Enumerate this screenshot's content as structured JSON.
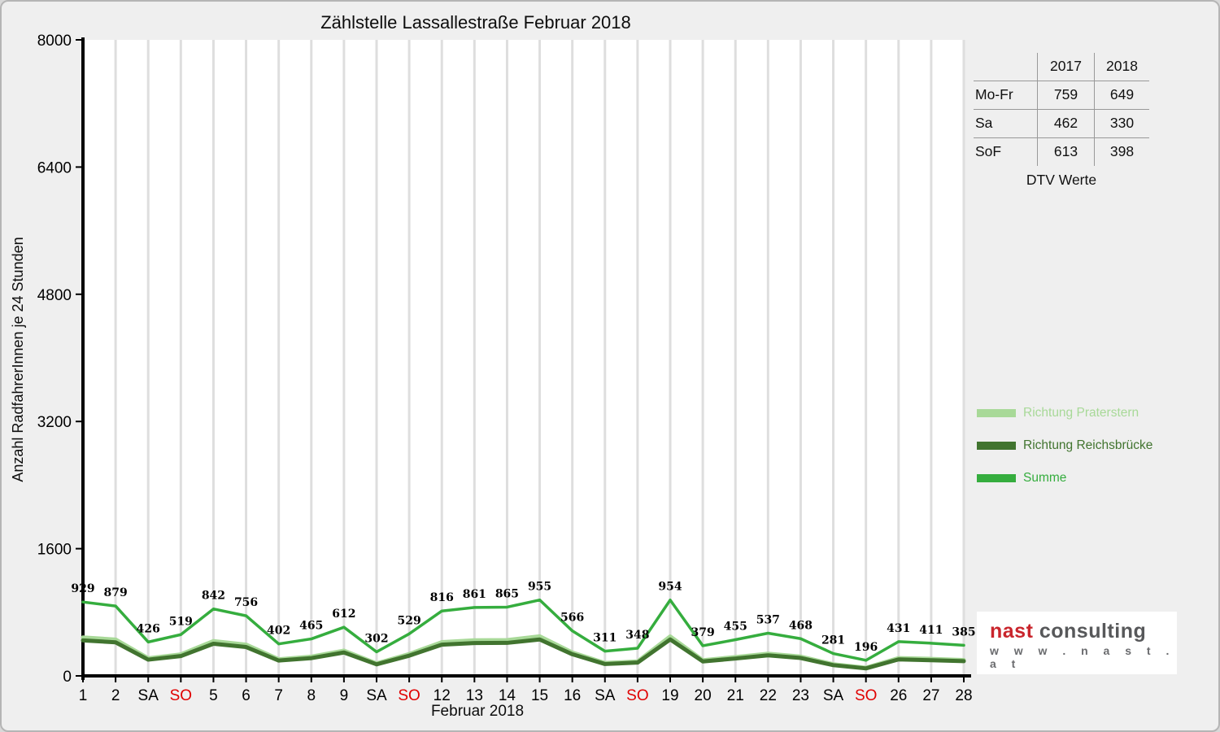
{
  "chart_data": {
    "type": "line",
    "title": "Zählstelle Lassallestraße Februar 2018",
    "xlabel": "Februar 2018",
    "ylabel": "Anzahl RadfahrerInnen je 24 Stunden",
    "ylim": [
      0,
      8000
    ],
    "yticks": [
      0,
      1600,
      3200,
      4800,
      6400,
      8000
    ],
    "grid": "vertical-only",
    "legend_position": "right",
    "sunday_tick_color": "#e00000",
    "categories": [
      "1",
      "2",
      "SA",
      "SO",
      "5",
      "6",
      "7",
      "8",
      "9",
      "SA",
      "SO",
      "12",
      "13",
      "14",
      "15",
      "16",
      "SA",
      "SO",
      "19",
      "20",
      "21",
      "22",
      "23",
      "SA",
      "SO",
      "26",
      "27",
      "28"
    ],
    "point_label_series": "Summe",
    "series": [
      {
        "name": "Richtung Praterstern",
        "color": "#a8d998",
        "values": [
          483,
          457,
          222,
          270,
          438,
          393,
          209,
          242,
          318,
          157,
          275,
          424,
          448,
          450,
          497,
          294,
          162,
          181,
          496,
          197,
          237,
          279,
          243,
          146,
          102,
          224,
          214,
          200
        ]
      },
      {
        "name": "Richtung Reichsbrücke",
        "color": "#41742f",
        "values": [
          446,
          422,
          204,
          249,
          404,
          363,
          193,
          223,
          294,
          145,
          254,
          392,
          413,
          415,
          458,
          272,
          149,
          167,
          458,
          182,
          218,
          258,
          225,
          135,
          94,
          207,
          197,
          185
        ]
      },
      {
        "name": "Summe",
        "color": "#35ad3e",
        "values": [
          929,
          879,
          426,
          519,
          842,
          756,
          402,
          465,
          612,
          302,
          529,
          816,
          861,
          865,
          955,
          566,
          311,
          348,
          954,
          379,
          455,
          537,
          468,
          281,
          196,
          431,
          411,
          385
        ]
      }
    ]
  },
  "dtv_table": {
    "caption": "DTV Werte",
    "columns": [
      "2017",
      "2018"
    ],
    "rows": [
      {
        "label": "Mo-Fr",
        "y2017": "759",
        "y2018": "649"
      },
      {
        "label": "Sa",
        "y2017": "462",
        "y2018": "330"
      },
      {
        "label": "SoF",
        "y2017": "613",
        "y2018": "398"
      }
    ]
  },
  "logo": {
    "brand_primary": "nast",
    "brand_secondary": "consulting",
    "website": "w w w . n a s t . a t"
  }
}
